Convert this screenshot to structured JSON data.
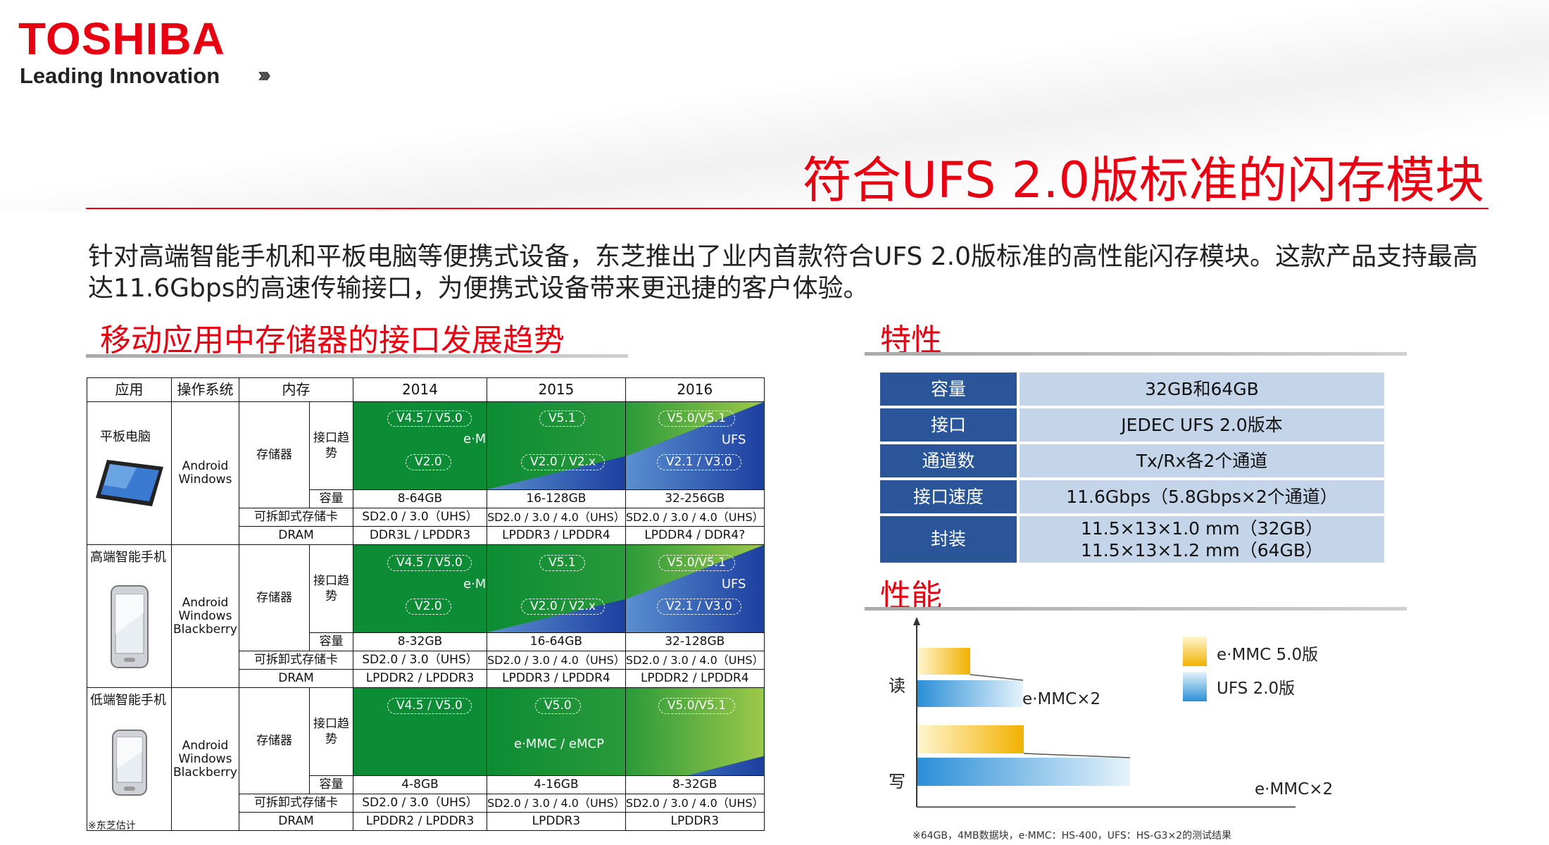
{
  "header": {
    "logo": "TOSHIBA",
    "tagline": "Leading Innovation",
    "tagline_arrows": "›››",
    "title": "符合UFS 2.0版标准的闪存模块"
  },
  "intro": {
    "line1": "针对高端智能手机和平板电脑等便携式设备，东芝推出了业内首款符合UFS 2.0版标准的高性能闪存模块。这款产品支持最高",
    "line2": "达11.6Gbps的高速传输接口，为便携式设备带来更迅捷的客户体验。"
  },
  "trend_section": {
    "heading": "移动应用中存储器的接口发展趋势",
    "note": "※东芝估计",
    "columns": [
      "应用",
      "操作系统",
      "内存",
      "2014",
      "2015",
      "2016"
    ],
    "row_labels": {
      "storage": "存储器",
      "trend": "接口趋势",
      "capacity": "容量",
      "removable": "可拆卸式存储卡",
      "dram": "DRAM"
    },
    "groups": [
      {
        "device": "平板电脑",
        "os": [
          "Android",
          "Windows"
        ],
        "trend": {
          "2014": {
            "top": "V4.5 / V5.0",
            "bottom": "V2.0",
            "label": "e·MMC"
          },
          "2015": {
            "top": "V5.1",
            "bottom": "V2.0 / V2.x"
          },
          "2016": {
            "top": "V5.0/V5.1",
            "bottom": "V2.1 / V3.0",
            "label": "UFS"
          }
        },
        "capacity": [
          "8-64GB",
          "16-128GB",
          "32-256GB"
        ],
        "removable": [
          "SD2.0 / 3.0（UHS）",
          "SD2.0 / 3.0 / 4.0（UHS）",
          "SD2.0 / 3.0 / 4.0（UHS）"
        ],
        "dram": [
          "DDR3L / LPDDR3",
          "LPDDR3 / LPDDR4",
          "LPDDR4 / DDR4?"
        ]
      },
      {
        "device": "高端智能手机",
        "os": [
          "Android",
          "Windows",
          "Blackberry"
        ],
        "trend": {
          "2014": {
            "top": "V4.5 / V5.0",
            "bottom": "V2.0",
            "label": "e·MMC"
          },
          "2015": {
            "top": "V5.1",
            "bottom": "V2.0 / V2.x"
          },
          "2016": {
            "top": "V5.0/V5.1",
            "bottom": "V2.1 / V3.0",
            "label": "UFS"
          }
        },
        "capacity": [
          "8-32GB",
          "16-64GB",
          "32-128GB"
        ],
        "removable": [
          "SD2.0 / 3.0（UHS）",
          "SD2.0 / 3.0 / 4.0（UHS）",
          "SD2.0 / 3.0 / 4.0（UHS）"
        ],
        "dram": [
          "LPDDR2 / LPDDR3",
          "LPDDR3 / LPDDR4",
          "LPDDR2 / LPDDR4"
        ]
      },
      {
        "device": "低端智能手机",
        "os": [
          "Android",
          "Windows",
          "Blackberry"
        ],
        "trend": {
          "2014": {
            "top": "V4.5 / V5.0"
          },
          "2015": {
            "top": "V5.0",
            "label": "e·MMC / eMCP"
          },
          "2016": {
            "top": "V5.0/V5.1"
          }
        },
        "capacity": [
          "4-8GB",
          "4-16GB",
          "8-32GB"
        ],
        "removable": [
          "SD2.0 / 3.0（UHS）",
          "SD2.0 / 3.0 / 4.0（UHS）",
          "SD2.0 / 3.0 / 4.0（UHS）"
        ],
        "dram": [
          "LPDDR2 / LPDDR3",
          "LPDDR3",
          "LPDDR3"
        ]
      }
    ]
  },
  "features": {
    "heading": "特性",
    "rows": [
      {
        "key": "容量",
        "value": "32GB和64GB"
      },
      {
        "key": "接口",
        "value": "JEDEC UFS 2.0版本"
      },
      {
        "key": "通道数",
        "value": "Tx/Rx各2个通道"
      },
      {
        "key": "接口速度",
        "value": "11.6Gbps（5.8Gbps×2个通道）"
      },
      {
        "key": "封装",
        "value": "11.5×13×1.0 mm（32GB）",
        "value2": "11.5×13×1.2 mm（64GB）"
      }
    ]
  },
  "performance": {
    "heading": "性能",
    "note": "※64GB，4MB数据块，e·MMC：HS-400，UFS：HS-G3×2的测试结果",
    "colors": {
      "emmc": "#f4b400",
      "ufs": "#2f8ed8"
    },
    "chart_data": {
      "type": "bar",
      "orientation": "horizontal",
      "categories": [
        "读",
        "写"
      ],
      "series": [
        {
          "name": "e·MMC 5.0版",
          "values": [
            1,
            1
          ]
        },
        {
          "name": "UFS 2.0版",
          "values": [
            2,
            2
          ]
        }
      ],
      "annotations": [
        "e·MMC×2",
        "e·MMC×2"
      ],
      "value_unit": "relative (e·MMC = 1)"
    }
  }
}
